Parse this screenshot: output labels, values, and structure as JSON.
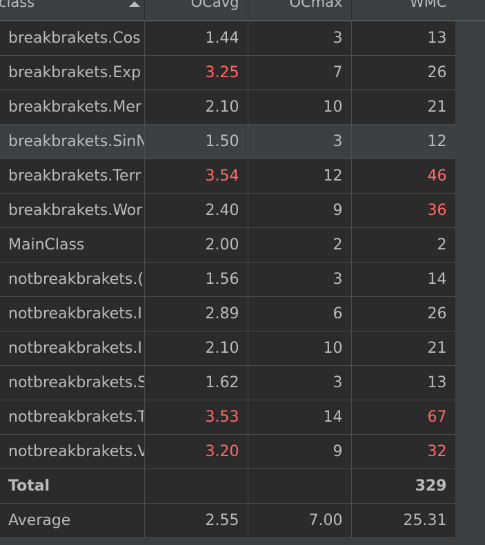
{
  "columns": [
    {
      "key": "class",
      "label": "class",
      "sorted": "ascending"
    },
    {
      "key": "ocavg",
      "label": "OCavg"
    },
    {
      "key": "ocmax",
      "label": "OCmax"
    },
    {
      "key": "wmc",
      "label": "WMC"
    }
  ],
  "colors": {
    "background": "#2b2b2b",
    "panel": "#3c3f41",
    "text": "#bbbbbb",
    "warning": "#ff6b68",
    "selected_row": "#3c4043"
  },
  "rows": [
    {
      "class": "breakbrakets.Cos",
      "ocavg": "1.44",
      "ocmax": "3",
      "wmc": "13",
      "warn": []
    },
    {
      "class": "breakbrakets.Exp",
      "ocavg": "3.25",
      "ocmax": "7",
      "wmc": "26",
      "warn": [
        "ocavg"
      ]
    },
    {
      "class": "breakbrakets.Mer",
      "ocavg": "2.10",
      "ocmax": "10",
      "wmc": "21",
      "warn": []
    },
    {
      "class": "breakbrakets.SinN",
      "ocavg": "1.50",
      "ocmax": "3",
      "wmc": "12",
      "warn": [],
      "selected": true
    },
    {
      "class": "breakbrakets.Terr",
      "ocavg": "3.54",
      "ocmax": "12",
      "wmc": "46",
      "warn": [
        "ocavg",
        "wmc"
      ]
    },
    {
      "class": "breakbrakets.Wor",
      "ocavg": "2.40",
      "ocmax": "9",
      "wmc": "36",
      "warn": [
        "wmc"
      ]
    },
    {
      "class": "MainClass",
      "ocavg": "2.00",
      "ocmax": "2",
      "wmc": "2",
      "warn": []
    },
    {
      "class": "notbreakbrakets.(",
      "ocavg": "1.56",
      "ocmax": "3",
      "wmc": "14",
      "warn": []
    },
    {
      "class": "notbreakbrakets.I",
      "ocavg": "2.89",
      "ocmax": "6",
      "wmc": "26",
      "warn": []
    },
    {
      "class": "notbreakbrakets.I",
      "ocavg": "2.10",
      "ocmax": "10",
      "wmc": "21",
      "warn": []
    },
    {
      "class": "notbreakbrakets.S",
      "ocavg": "1.62",
      "ocmax": "3",
      "wmc": "13",
      "warn": []
    },
    {
      "class": "notbreakbrakets.T",
      "ocavg": "3.53",
      "ocmax": "14",
      "wmc": "67",
      "warn": [
        "ocavg",
        "wmc"
      ]
    },
    {
      "class": "notbreakbrakets.V",
      "ocavg": "3.20",
      "ocmax": "9",
      "wmc": "32",
      "warn": [
        "ocavg",
        "wmc"
      ]
    }
  ],
  "total": {
    "label": "Total",
    "ocavg": "",
    "ocmax": "",
    "wmc": "329"
  },
  "average": {
    "label": "Average",
    "ocavg": "2.55",
    "ocmax": "7.00",
    "wmc": "25.31"
  }
}
